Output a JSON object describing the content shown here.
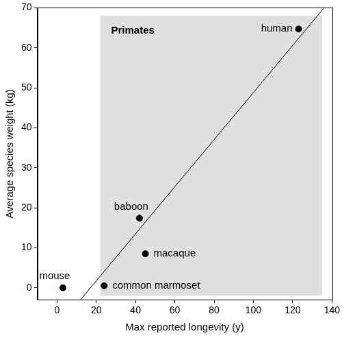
{
  "chart_data": {
    "type": "scatter",
    "x_label": "Max reported longevity (y)",
    "y_label": "Average species weight (kg)",
    "points": {
      "labels": [
        "mouse",
        "common marmoset",
        "baboon",
        "macaque",
        "human"
      ],
      "x": [
        3,
        24,
        42,
        45,
        123
      ],
      "y": [
        0,
        0.5,
        17.4,
        8.5,
        64.7
      ]
    },
    "color": "#000000",
    "marker": "circle",
    "trend_line": {
      "x": [
        12,
        136
      ],
      "y": [
        -3,
        70
      ]
    },
    "shaded_region": {
      "label": "Primates",
      "x": [
        22,
        135
      ],
      "y": [
        -2,
        68
      ],
      "color": "#e0e0e0"
    },
    "xlim": [
      -10,
      140
    ],
    "xticks": [
      0,
      20,
      40,
      60,
      80,
      100,
      120,
      140
    ],
    "ylim": [
      -3,
      70
    ],
    "yticks": [
      0,
      10,
      20,
      30,
      40,
      50,
      60,
      70
    ],
    "grid": false
  }
}
